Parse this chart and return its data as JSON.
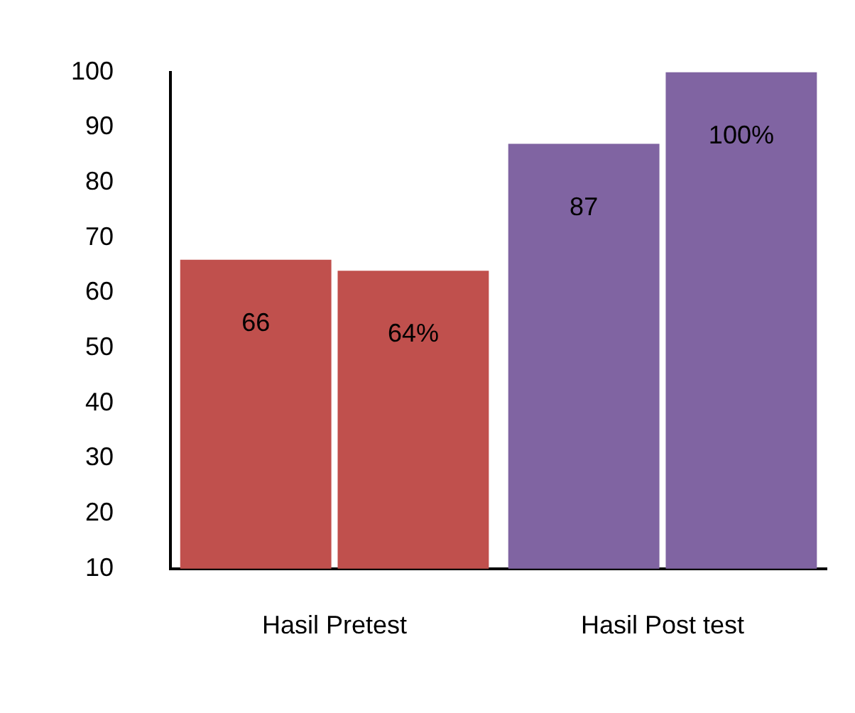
{
  "chart_data": {
    "type": "bar",
    "categories": [
      "Hasil Pretest",
      "Hasil Post test"
    ],
    "series": [
      {
        "colors": [
          "#c0504d",
          "#8064a2"
        ],
        "values": [
          66,
          87
        ],
        "value_labels": [
          "66",
          "87"
        ]
      },
      {
        "colors": [
          "#c0504d",
          "#8064a2"
        ],
        "values": [
          64,
          100
        ],
        "value_labels": [
          "64%",
          "100%"
        ]
      }
    ],
    "ylim": [
      10,
      100
    ],
    "yticks": [
      10,
      20,
      30,
      40,
      50,
      60,
      70,
      80,
      90,
      100
    ],
    "grid": false,
    "legend": false
  }
}
